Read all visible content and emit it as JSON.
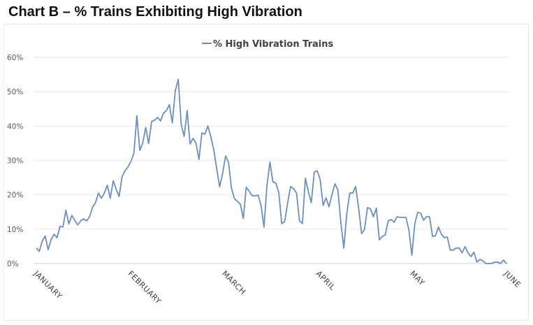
{
  "page": {
    "title": "Chart B – % Trains Exhibiting High Vibration"
  },
  "chart_data": {
    "type": "line",
    "title": "Chart B – % Trains Exhibiting High Vibration",
    "xlabel": "",
    "ylabel": "",
    "ylim": [
      0,
      60
    ],
    "y_ticks": [
      0,
      10,
      20,
      30,
      40,
      50,
      60
    ],
    "y_tick_labels": [
      "0%",
      "10%",
      "20%",
      "30%",
      "40%",
      "50%",
      "60%"
    ],
    "x_tick_labels": [
      "JANUARY",
      "FEBRUARY",
      "MARCH",
      "APRIL",
      "MAY",
      "JUNE"
    ],
    "grid": true,
    "legend_position": "top-center",
    "line_color": "#6b8fc0",
    "series": [
      {
        "name": "% High Vibration Trains",
        "values": [
          4.5,
          3.5,
          6.5,
          8,
          4,
          7,
          8.5,
          7.5,
          10.8,
          10.6,
          15.5,
          11.5,
          14,
          12.6,
          11.2,
          12.4,
          13,
          12.4,
          13.6,
          16.3,
          17.7,
          20.5,
          19,
          20.5,
          22.8,
          19,
          24.1,
          21.6,
          19.5,
          25.3,
          27,
          28.1,
          29.7,
          32.1,
          43,
          32.9,
          35.1,
          39.6,
          34.9,
          41.3,
          41.7,
          42.5,
          41.5,
          43.7,
          44.5,
          46.2,
          40.9,
          50.2,
          53.6,
          40.5,
          37,
          44.5,
          34.8,
          36.4,
          35,
          30.3,
          38,
          37.6,
          40,
          37,
          33.1,
          27.7,
          22.3,
          26.2,
          31.3,
          29.5,
          21.8,
          18.9,
          18.1,
          17.3,
          13.1,
          22.2,
          21,
          19.7,
          19.7,
          19.9,
          16.9,
          10.6,
          22.8,
          29.5,
          23.8,
          23.4,
          20.7,
          11.6,
          12.2,
          17.7,
          22.4,
          21.8,
          20.5,
          12.4,
          11.6,
          24.8,
          20.9,
          17.7,
          26.6,
          27,
          24.4,
          16.9,
          19.1,
          16.5,
          20.1,
          23.2,
          21.4,
          11.8,
          4.5,
          14.4,
          20.5,
          20.5,
          22.4,
          16.1,
          8.7,
          9.9,
          16.3,
          15.9,
          13.6,
          16.1,
          6.9,
          7.9,
          8.3,
          12.4,
          12.8,
          12,
          13.6,
          13.4,
          13.4,
          13.4,
          9.8,
          2.4,
          11.6,
          14.9,
          14.6,
          12.6,
          13.6,
          13.6,
          7.9,
          8.1,
          10.6,
          8.5,
          7.5,
          7.7,
          3.9,
          3.9,
          4.5,
          4.5,
          3.1,
          4.9,
          3.1,
          2.0,
          3.3,
          0.4,
          1.2,
          0.8,
          0,
          0,
          0,
          0.4,
          0.4,
          0,
          1.0,
          0
        ]
      }
    ]
  }
}
